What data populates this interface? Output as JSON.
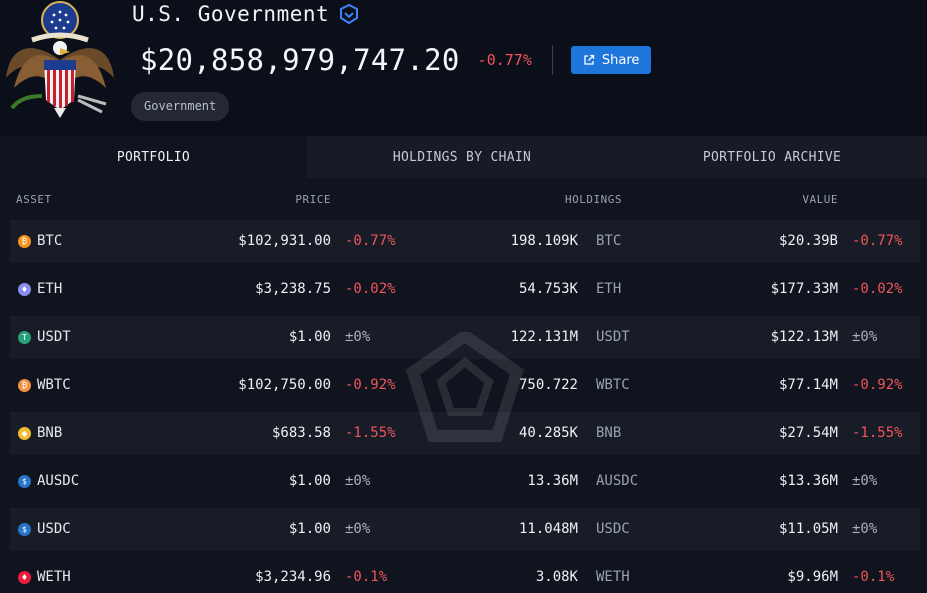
{
  "entity": {
    "name": "U.S. Government",
    "total_value": "$20,858,979,747.20",
    "total_change": "-0.77%",
    "share_label": "Share",
    "tag": "Government"
  },
  "tabs": [
    {
      "label": "PORTFOLIO",
      "active": true
    },
    {
      "label": "HOLDINGS BY CHAIN",
      "active": false
    },
    {
      "label": "PORTFOLIO ARCHIVE",
      "active": false
    }
  ],
  "table": {
    "headers": {
      "asset": "ASSET",
      "price": "PRICE",
      "holdings": "HOLDINGS",
      "value": "VALUE"
    },
    "rows": [
      {
        "symbol": "BTC",
        "price": "$102,931.00",
        "price_change": "-0.77%",
        "holdings": "198.109K",
        "unit": "BTC",
        "value": "$20.39B",
        "value_change": "-0.77%",
        "icon": "bitcoin-icon",
        "color": "#f7931a"
      },
      {
        "symbol": "ETH",
        "price": "$3,238.75",
        "price_change": "-0.02%",
        "holdings": "54.753K",
        "unit": "ETH",
        "value": "$177.33M",
        "value_change": "-0.02%",
        "icon": "ethereum-icon",
        "color": "#8c8cf0"
      },
      {
        "symbol": "USDT",
        "price": "$1.00",
        "price_change": "±0%",
        "holdings": "122.131M",
        "unit": "USDT",
        "value": "$122.13M",
        "value_change": "±0%",
        "icon": "tether-icon",
        "color": "#26a17b"
      },
      {
        "symbol": "WBTC",
        "price": "$102,750.00",
        "price_change": "-0.92%",
        "holdings": "750.722",
        "unit": "WBTC",
        "value": "$77.14M",
        "value_change": "-0.92%",
        "icon": "wrapped-bitcoin-icon",
        "color": "#f09242"
      },
      {
        "symbol": "BNB",
        "price": "$683.58",
        "price_change": "-1.55%",
        "holdings": "40.285K",
        "unit": "BNB",
        "value": "$27.54M",
        "value_change": "-1.55%",
        "icon": "bnb-icon",
        "color": "#f3ba2f"
      },
      {
        "symbol": "AUSDC",
        "price": "$1.00",
        "price_change": "±0%",
        "holdings": "13.36M",
        "unit": "AUSDC",
        "value": "$13.36M",
        "value_change": "±0%",
        "icon": "aave-usdc-icon",
        "color": "#2775ca"
      },
      {
        "symbol": "USDC",
        "price": "$1.00",
        "price_change": "±0%",
        "holdings": "11.048M",
        "unit": "USDC",
        "value": "$11.05M",
        "value_change": "±0%",
        "icon": "usdc-icon",
        "color": "#2775ca"
      },
      {
        "symbol": "WETH",
        "price": "$3,234.96",
        "price_change": "-0.1%",
        "holdings": "3.08K",
        "unit": "WETH",
        "value": "$9.96M",
        "value_change": "-0.1%",
        "icon": "weth-icon",
        "color": "#ec1c3b"
      }
    ]
  },
  "colors": {
    "accent": "#1e76dd",
    "negative": "#f0555a",
    "background": "#0b0f19"
  }
}
